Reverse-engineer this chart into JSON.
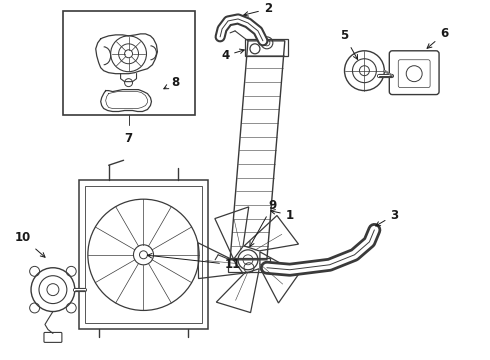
{
  "bg_color": "#ffffff",
  "line_color": "#3a3a3a",
  "label_color": "#1a1a1a",
  "label_fontsize": 8.5,
  "fig_w": 4.9,
  "fig_h": 3.6,
  "dpi": 100
}
